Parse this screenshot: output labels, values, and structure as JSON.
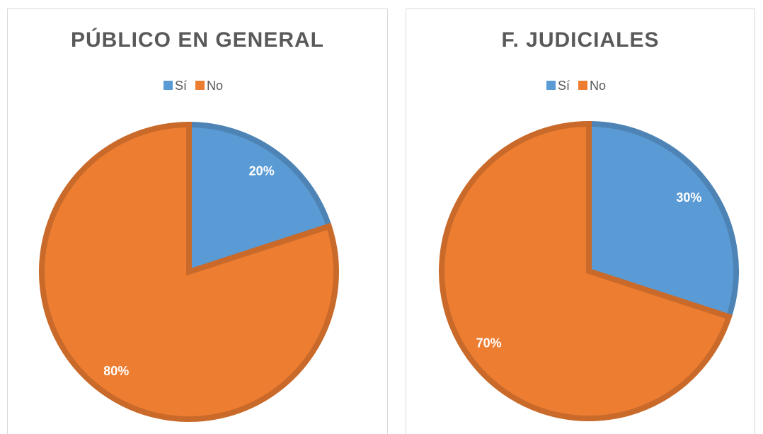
{
  "chart_data": [
    {
      "type": "pie",
      "title": "PÚBLICO EN GENERAL",
      "categories": [
        "Sí",
        "No"
      ],
      "values": [
        20,
        80
      ],
      "value_labels": [
        "20%",
        "80%"
      ],
      "colors": [
        "#5b9bd5",
        "#ed7d31"
      ],
      "legend": "top"
    },
    {
      "type": "pie",
      "title": "F. JUDICIALES",
      "categories": [
        "Sí",
        "No"
      ],
      "values": [
        30,
        70
      ],
      "value_labels": [
        "30%",
        "70%"
      ],
      "colors": [
        "#5b9bd5",
        "#ed7d31"
      ],
      "legend": "top"
    }
  ]
}
